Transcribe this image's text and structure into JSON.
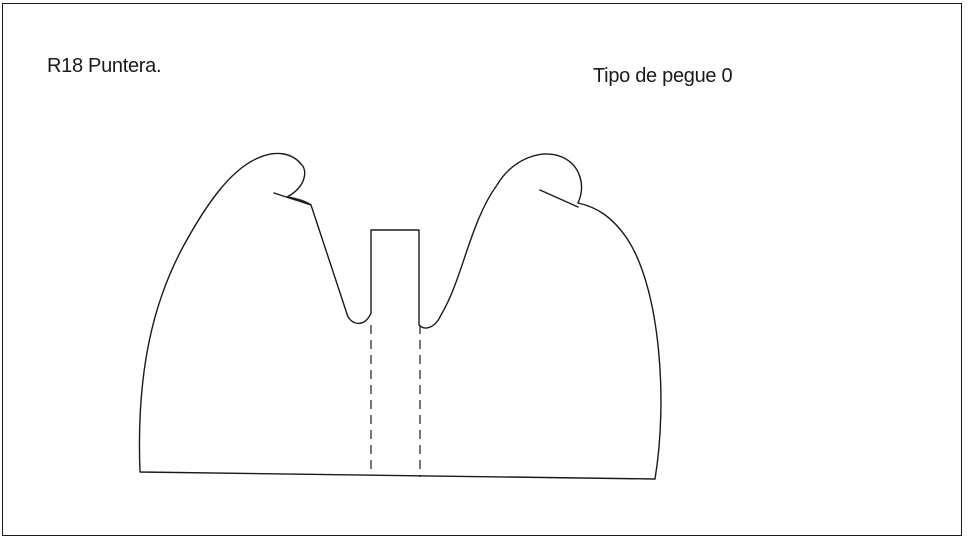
{
  "diagram": {
    "title": "R18 Puntera.",
    "subtitle": "Tipo de pegue 0"
  }
}
